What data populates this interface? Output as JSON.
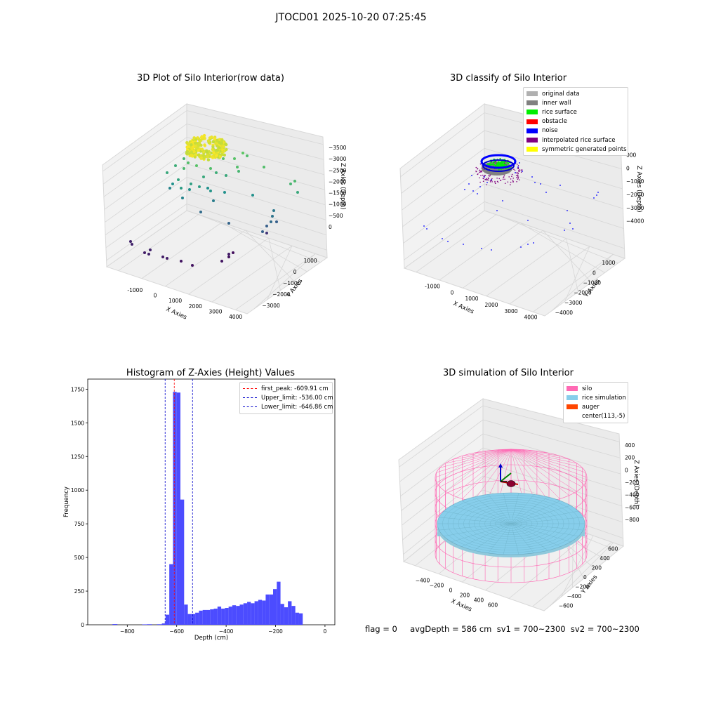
{
  "suptitle": "JTOCD01 2025-10-20 07:25:45",
  "footer": "flag = 0     avgDepth = 586 cm  sv1 = 700~2300  sv2 = 700~2300",
  "chart_data": [
    {
      "type": "scatter",
      "subtype": "3d",
      "title": "3D Plot of Silo Interior(row data)",
      "xlabel": "X Axies",
      "ylabel": "Y Axies",
      "zlabel": "Z Axies (Depth)",
      "x_ticks": [
        "-1000",
        "0",
        "1000",
        "2000",
        "3000",
        "4000"
      ],
      "y_ticks": [
        "1000",
        "0",
        "−1000",
        "−2000",
        "−3000"
      ],
      "z_ticks": [
        "0",
        "−500",
        "−1000",
        "−1500",
        "−2000",
        "−2500",
        "−3000",
        "−3500"
      ],
      "colormap": "viridis"
    },
    {
      "type": "scatter",
      "subtype": "3d",
      "title": "3D classify of Silo Interior",
      "xlabel": "X Axies",
      "ylabel": "Y Axies",
      "zlabel": "Z Axies (Depth)",
      "x_ticks": [
        "-1000",
        "0",
        "1000",
        "2000",
        "3000",
        "4000"
      ],
      "y_ticks": [
        "1000",
        "0",
        "−1000",
        "−2000",
        "−3000",
        "−4000"
      ],
      "z_ticks": [
        "000",
        "0",
        "−1000",
        "−2000",
        "−3000",
        "−4000"
      ],
      "legend": [
        {
          "label": "original data",
          "color": "#b0b0b0"
        },
        {
          "label": "inner wall",
          "color": "#808080"
        },
        {
          "label": "rice surface",
          "color": "#00ee00"
        },
        {
          "label": "obstacle",
          "color": "#ff0000"
        },
        {
          "label": "noise",
          "color": "#0000ff"
        },
        {
          "label": "interpolated rice surface",
          "color": "#800080"
        },
        {
          "label": "symmetric generated points",
          "color": "#ffff00"
        }
      ]
    },
    {
      "type": "bar",
      "subtype": "histogram",
      "title": "Histogram of Z-Axies (Height) Values",
      "xlabel": "Depth (cm)",
      "ylabel": "Frequency",
      "xlim": [
        -960,
        40
      ],
      "ylim": [
        0,
        1825
      ],
      "x_ticks": [
        -800,
        -600,
        -400,
        -200,
        0
      ],
      "y_ticks": [
        0,
        250,
        500,
        750,
        1000,
        1250,
        1500,
        1750
      ],
      "bar_color": "#4c4cff",
      "bins": [
        [
          -860,
          -840,
          5
        ],
        [
          -740,
          -720,
          3
        ],
        [
          -720,
          -700,
          4
        ],
        [
          -680,
          -660,
          4
        ],
        [
          -660,
          -640,
          10
        ],
        [
          -645,
          -630,
          75
        ],
        [
          -630,
          -615,
          450
        ],
        [
          -615,
          -600,
          1730
        ],
        [
          -600,
          -585,
          1725
        ],
        [
          -585,
          -570,
          930
        ],
        [
          -570,
          -555,
          150
        ],
        [
          -555,
          -540,
          80
        ],
        [
          -540,
          -525,
          80
        ],
        [
          -525,
          -510,
          90
        ],
        [
          -510,
          -495,
          105
        ],
        [
          -495,
          -480,
          110
        ],
        [
          -480,
          -465,
          110
        ],
        [
          -465,
          -450,
          115
        ],
        [
          -450,
          -435,
          120
        ],
        [
          -435,
          -420,
          135
        ],
        [
          -420,
          -405,
          120
        ],
        [
          -405,
          -390,
          125
        ],
        [
          -390,
          -375,
          135
        ],
        [
          -375,
          -360,
          145
        ],
        [
          -360,
          -345,
          140
        ],
        [
          -345,
          -330,
          150
        ],
        [
          -330,
          -315,
          160
        ],
        [
          -315,
          -300,
          170
        ],
        [
          -300,
          -285,
          160
        ],
        [
          -285,
          -270,
          175
        ],
        [
          -270,
          -255,
          185
        ],
        [
          -255,
          -240,
          180
        ],
        [
          -240,
          -225,
          225
        ],
        [
          -225,
          -210,
          225
        ],
        [
          -210,
          -195,
          265
        ],
        [
          -195,
          -180,
          320
        ],
        [
          -180,
          -165,
          155
        ],
        [
          -165,
          -150,
          130
        ],
        [
          -150,
          -135,
          175
        ],
        [
          -135,
          -120,
          140
        ],
        [
          -120,
          -105,
          90
        ]
      ],
      "vlines": [
        {
          "label": "first_peak: -609.91 cm",
          "value": -609.91,
          "color": "#ff0000"
        },
        {
          "label": "Upper_limit: -536.00 cm",
          "value": -536.0,
          "color": "#0000cc"
        },
        {
          "label": "Lower_limit: -646.86 cm",
          "value": -646.86,
          "color": "#0000cc"
        }
      ]
    },
    {
      "type": "surface",
      "subtype": "3d",
      "title": "3D simulation of Silo Interior",
      "xlabel": "X Axies",
      "ylabel": "Y Axies",
      "zlabel": "Z Axies (Depth)",
      "x_ticks": [
        "−400",
        "−200",
        "0",
        "200",
        "400",
        "600"
      ],
      "y_ticks": [
        "600",
        "400",
        "200",
        "0",
        "−200",
        "−400",
        "−600"
      ],
      "z_ticks": [
        "400",
        "200",
        "0",
        "−200",
        "−400",
        "−600",
        "−800"
      ],
      "legend": [
        {
          "label": "silo",
          "color": "#ff69b4"
        },
        {
          "label": "rice simulation",
          "color": "#87ceeb"
        },
        {
          "label": "auger",
          "color": "#ff4500"
        },
        {
          "label": "center(113,-5)",
          "color": "#ffffff"
        }
      ]
    }
  ]
}
